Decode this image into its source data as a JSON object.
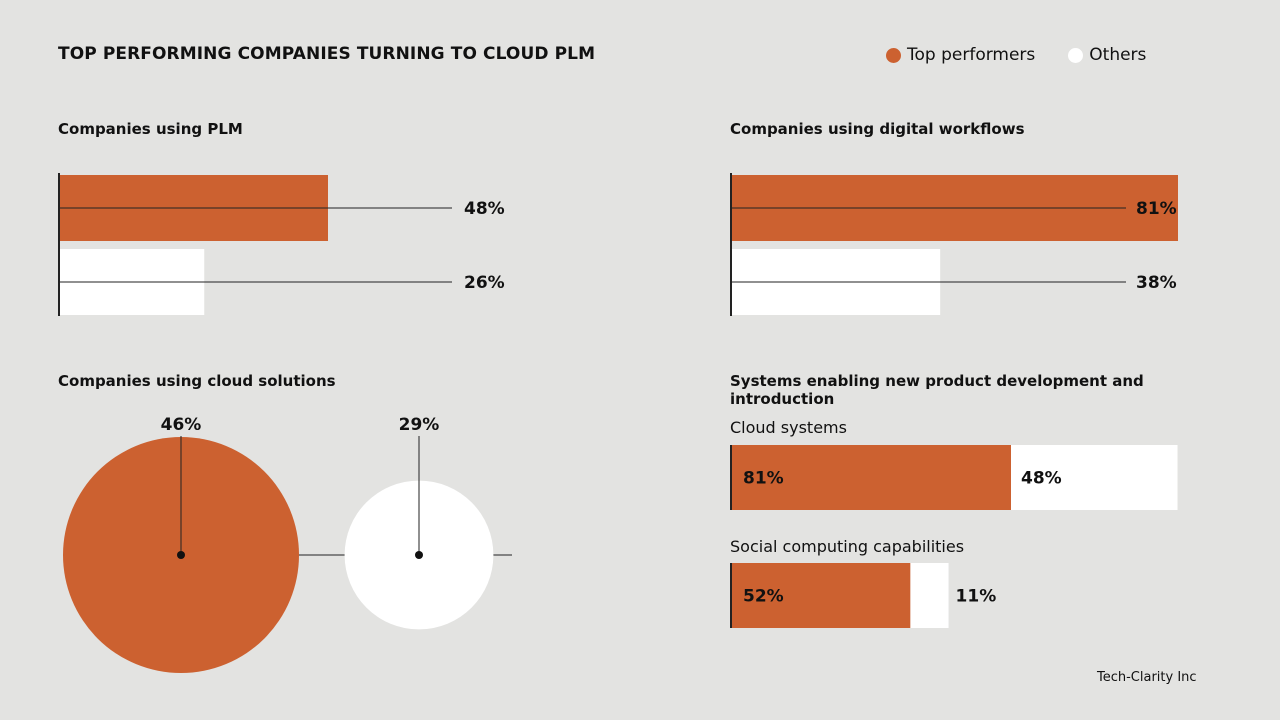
{
  "title": "TOP PERFORMING COMPANIES TURNING TO CLOUD PLM",
  "legend": [
    {
      "label": "Top performers",
      "color": "#cc6130"
    },
    {
      "label": "Others",
      "color": "#ffffff"
    }
  ],
  "footer": "Tech-Clarity Inc",
  "chart_data": [
    {
      "type": "bar",
      "title": "Companies using PLM",
      "categories": [
        "Top performers",
        "Others"
      ],
      "values": [
        48,
        26
      ],
      "value_labels": [
        "48%",
        "26%"
      ],
      "unit": "%",
      "orientation": "horizontal"
    },
    {
      "type": "bar",
      "title": "Companies using digital workflows",
      "categories": [
        "Top performers",
        "Others"
      ],
      "values": [
        81,
        38
      ],
      "value_labels": [
        "81%",
        "38%"
      ],
      "unit": "%",
      "orientation": "horizontal"
    },
    {
      "type": "bubble",
      "title": "Companies using cloud solutions",
      "categories": [
        "Top performers",
        "Others"
      ],
      "values": [
        46,
        29
      ],
      "value_labels": [
        "46%",
        "29%"
      ],
      "unit": "%"
    },
    {
      "type": "bar",
      "title": "Systems enabling new product development and introduction",
      "stacked": true,
      "orientation": "horizontal",
      "categories": [
        "Cloud systems",
        "Social computing capabilities"
      ],
      "series": [
        {
          "name": "Top performers",
          "values": [
            81,
            52
          ],
          "value_labels": [
            "81%",
            "52%"
          ]
        },
        {
          "name": "Others",
          "values": [
            48,
            11
          ],
          "value_labels": [
            "48%",
            "11%"
          ]
        }
      ],
      "unit": "%"
    }
  ],
  "colors": {
    "top": "#cc6130",
    "others": "#ffffff",
    "line": "#222222"
  }
}
